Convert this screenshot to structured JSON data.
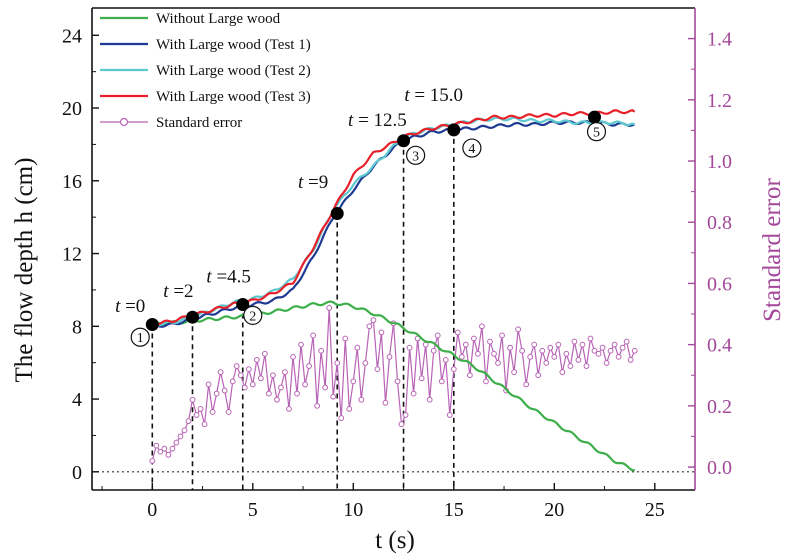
{
  "chart_data": {
    "type": "line",
    "xlabel": "t (s)",
    "ylabel": "The flow depth h (cm)",
    "y2label": "Standard error",
    "xlim": [
      -3,
      27
    ],
    "ylim": [
      -1,
      25.5
    ],
    "y2lim": [
      -0.075,
      1.5
    ],
    "xticks": [
      0,
      5,
      10,
      15,
      20,
      25
    ],
    "yticks": [
      0,
      4,
      8,
      12,
      16,
      20,
      24
    ],
    "y2ticks": [
      "0.0",
      "0.2",
      "0.4",
      "0.6",
      "0.8",
      "1.0",
      "1.2",
      "1.4"
    ],
    "legend_position": "top-left",
    "colors": {
      "without": "#3daf4a",
      "test1": "#1f3a93",
      "test2": "#5cc9cf",
      "test3": "#e8202a",
      "stderr": "#b864b6",
      "right_axis": "#a3489a"
    },
    "series": [
      {
        "name": "Without Large wood",
        "x": [
          0,
          1,
          2,
          3,
          4,
          5,
          6,
          7,
          8,
          9,
          10,
          11,
          12,
          13,
          14,
          15,
          16,
          17,
          18,
          19,
          20,
          21,
          22,
          23,
          24
        ],
        "y": [
          8.1,
          8.2,
          8.3,
          8.4,
          8.5,
          8.6,
          8.8,
          9.0,
          9.2,
          9.3,
          9.1,
          8.7,
          8.2,
          7.6,
          7.0,
          6.4,
          5.8,
          5.0,
          4.2,
          3.4,
          2.7,
          2.0,
          1.3,
          0.6,
          0.1
        ]
      },
      {
        "name": "With Large wood (Test 1)",
        "x": [
          0,
          1,
          2,
          3,
          4,
          4.5,
          5,
          6,
          7,
          8,
          9,
          10,
          11,
          12,
          12.5,
          13,
          14,
          15,
          16,
          17,
          18,
          19,
          20,
          21,
          22,
          23,
          24
        ],
        "y": [
          8.0,
          8.1,
          8.4,
          8.7,
          9.0,
          9.1,
          9.2,
          9.4,
          10.0,
          11.8,
          14.0,
          15.5,
          16.8,
          17.8,
          18.2,
          18.4,
          18.7,
          18.8,
          18.9,
          19.0,
          19.1,
          19.1,
          19.2,
          19.2,
          19.2,
          19.1,
          19.1
        ]
      },
      {
        "name": "With Large wood (Test 2)",
        "x": [
          0,
          1,
          2,
          3,
          4,
          4.5,
          5,
          6,
          7,
          8,
          9,
          10,
          11,
          12,
          12.5,
          13,
          14,
          15,
          16,
          17,
          18,
          19,
          20,
          21,
          22,
          23,
          24
        ],
        "y": [
          8.1,
          8.2,
          8.5,
          8.9,
          9.3,
          9.4,
          9.5,
          9.9,
          10.6,
          12.2,
          14.4,
          15.8,
          16.8,
          17.9,
          18.3,
          18.6,
          18.9,
          19.1,
          19.3,
          19.4,
          19.4,
          19.3,
          19.3,
          19.2,
          19.2,
          19.2,
          19.1
        ]
      },
      {
        "name": "With Large wood (Test 3)",
        "x": [
          0,
          1,
          2,
          3,
          4,
          4.5,
          5,
          6,
          7,
          8,
          9,
          10,
          11,
          12,
          12.5,
          13,
          14,
          15,
          16,
          17,
          18,
          19,
          20,
          21,
          22,
          23,
          24
        ],
        "y": [
          8.1,
          8.3,
          8.6,
          8.9,
          9.2,
          9.3,
          9.4,
          9.8,
          10.4,
          12.3,
          14.4,
          16.3,
          17.5,
          18.1,
          18.4,
          18.6,
          18.9,
          19.1,
          19.3,
          19.5,
          19.5,
          19.6,
          19.6,
          19.7,
          19.7,
          19.8,
          19.8
        ]
      }
    ],
    "stderr_series": {
      "name": "Standard error",
      "axis": "right",
      "x": [
        0,
        0.2,
        0.4,
        0.6,
        0.8,
        1.0,
        1.2,
        1.4,
        1.6,
        1.8,
        2.0,
        2.2,
        2.4,
        2.6,
        2.8,
        3.0,
        3.2,
        3.4,
        3.6,
        3.8,
        4.0,
        4.2,
        4.4,
        4.6,
        4.8,
        5.0,
        5.2,
        5.4,
        5.6,
        5.8,
        6.0,
        6.2,
        6.4,
        6.6,
        6.8,
        7.0,
        7.2,
        7.4,
        7.6,
        7.8,
        8.0,
        8.2,
        8.4,
        8.6,
        8.8,
        9.0,
        9.2,
        9.4,
        9.6,
        9.8,
        10.0,
        10.2,
        10.4,
        10.6,
        10.8,
        11.0,
        11.2,
        11.4,
        11.6,
        11.8,
        12.0,
        12.2,
        12.4,
        12.6,
        12.8,
        13.0,
        13.2,
        13.4,
        13.6,
        13.8,
        14.0,
        14.2,
        14.4,
        14.6,
        14.8,
        15.0,
        15.2,
        15.4,
        15.6,
        15.8,
        16.0,
        16.2,
        16.4,
        16.6,
        16.8,
        17.0,
        17.2,
        17.4,
        17.6,
        17.8,
        18.0,
        18.2,
        18.4,
        18.6,
        18.8,
        19.0,
        19.2,
        19.4,
        19.6,
        19.8,
        20.0,
        20.2,
        20.4,
        20.6,
        20.8,
        21.0,
        21.2,
        21.4,
        21.6,
        21.8,
        22.0,
        22.2,
        22.4,
        22.6,
        22.8,
        23.0,
        23.2,
        23.4,
        23.6,
        23.8,
        24.0
      ],
      "y": [
        0.02,
        0.07,
        0.05,
        0.06,
        0.04,
        0.06,
        0.08,
        0.1,
        0.12,
        0.15,
        0.22,
        0.17,
        0.19,
        0.14,
        0.27,
        0.18,
        0.24,
        0.31,
        0.25,
        0.18,
        0.28,
        0.33,
        0.3,
        0.26,
        0.32,
        0.27,
        0.35,
        0.29,
        0.37,
        0.24,
        0.3,
        0.22,
        0.26,
        0.31,
        0.19,
        0.36,
        0.24,
        0.4,
        0.27,
        0.33,
        0.43,
        0.2,
        0.38,
        0.26,
        0.52,
        0.23,
        0.34,
        0.16,
        0.42,
        0.19,
        0.28,
        0.39,
        0.22,
        0.34,
        0.46,
        0.48,
        0.32,
        0.44,
        0.21,
        0.36,
        0.47,
        0.28,
        0.14,
        0.17,
        0.39,
        0.24,
        0.42,
        0.29,
        0.4,
        0.22,
        0.38,
        0.43,
        0.28,
        0.35,
        0.17,
        0.32,
        0.44,
        0.36,
        0.4,
        0.3,
        0.42,
        0.37,
        0.46,
        0.28,
        0.41,
        0.37,
        0.34,
        0.43,
        0.25,
        0.39,
        0.31,
        0.45,
        0.38,
        0.27,
        0.36,
        0.4,
        0.3,
        0.38,
        0.34,
        0.39,
        0.36,
        0.4,
        0.31,
        0.37,
        0.33,
        0.41,
        0.35,
        0.4,
        0.33,
        0.42,
        0.38,
        0.37,
        0.39,
        0.34,
        0.38,
        0.4,
        0.36,
        0.39,
        0.41,
        0.35,
        0.38
      ]
    },
    "markers": [
      {
        "x": 0,
        "y": 8.1,
        "label": "t =0",
        "num": "1"
      },
      {
        "x": 2,
        "y": 8.5,
        "label": "t =2",
        "num": ""
      },
      {
        "x": 4.5,
        "y": 9.2,
        "label": "t =4.5",
        "num": "2"
      },
      {
        "x": 9.2,
        "y": 14.2,
        "label": "t =9",
        "num": ""
      },
      {
        "x": 12.5,
        "y": 18.2,
        "label": "t = 12.5",
        "num": "3"
      },
      {
        "x": 15.0,
        "y": 18.8,
        "label": "t = 15.0",
        "num": "4"
      },
      {
        "x": 22.0,
        "y": 19.5,
        "label": "",
        "num": "5"
      }
    ],
    "circled_numbers": [
      "①",
      "②",
      "③",
      "④",
      "⑤"
    ]
  }
}
